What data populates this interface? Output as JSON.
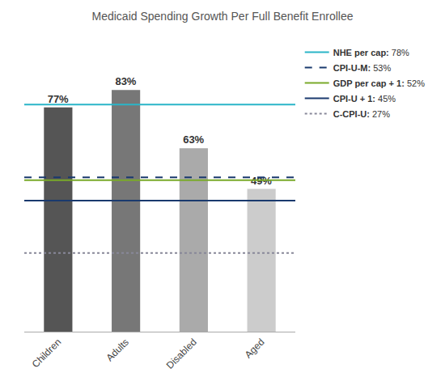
{
  "chart_data": {
    "type": "bar",
    "title": "Medicaid Spending Growth Per Full Benefit Enrollee",
    "categories": [
      "Children",
      "Adults",
      "Disabled",
      "Aged"
    ],
    "values": [
      77,
      83,
      63,
      49
    ],
    "value_labels": [
      "77%",
      "83%",
      "63%",
      "49%"
    ],
    "colors": [
      "#555555",
      "#777777",
      "#aaaaaa",
      "#cccccc"
    ],
    "data_labels": true,
    "ylim": [
      0,
      100
    ],
    "tick_labels": "x",
    "grid": false,
    "legend": "right",
    "reference_lines": [
      {
        "name": "NHE per cap:",
        "value": 78,
        "value_label": "78%",
        "color": "#2ab5c8",
        "line_style": "solid"
      },
      {
        "name": "CPI-U-M:",
        "value": 53,
        "value_label": "53%",
        "color": "#1a3a6e",
        "line_style": "dash"
      },
      {
        "name": "GDP per cap + 1:",
        "value": 52,
        "value_label": "52%",
        "color": "#7aaa2a",
        "line_style": "solid"
      },
      {
        "name": "CPI-U + 1:",
        "value": 45,
        "value_label": "45%",
        "color": "#1a3a6e",
        "line_style": "solid"
      },
      {
        "name": "C-CPI-U:",
        "value": 27,
        "value_label": "27%",
        "color": "#888899",
        "line_style": "dot"
      }
    ]
  }
}
